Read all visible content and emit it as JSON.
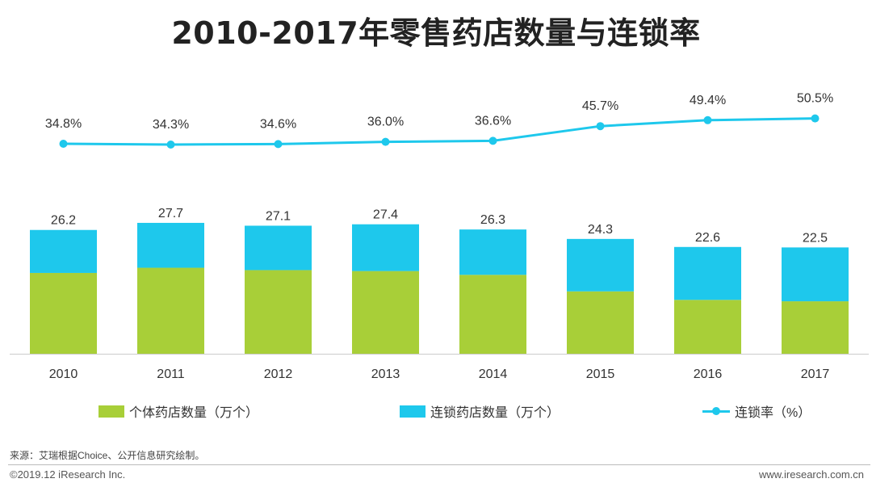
{
  "title": "2010-2017年零售药店数量与连锁率",
  "chart_data": {
    "type": "bar",
    "stacked": true,
    "title": "2010-2017年零售药店数量与连锁率",
    "categories": [
      "2010",
      "2011",
      "2012",
      "2013",
      "2014",
      "2015",
      "2016",
      "2017"
    ],
    "series": [
      {
        "name": "个体药店数量（万个）",
        "type": "bar",
        "color": "#a8cf38",
        "values": [
          17.1,
          18.2,
          17.7,
          17.5,
          16.7,
          13.2,
          11.4,
          11.1
        ]
      },
      {
        "name": "连锁药店数量（万个）",
        "type": "bar",
        "color": "#1ec8ec",
        "values": [
          9.1,
          9.5,
          9.4,
          9.9,
          9.6,
          11.1,
          11.2,
          11.4
        ]
      },
      {
        "name": "连锁率（%）",
        "type": "line",
        "color": "#1ec8ec",
        "values": [
          34.8,
          34.3,
          34.6,
          36.0,
          36.6,
          45.7,
          49.4,
          50.5
        ]
      }
    ],
    "totals": [
      26.2,
      27.7,
      27.1,
      27.4,
      26.3,
      24.3,
      22.6,
      22.5
    ],
    "total_labels": [
      "26.2",
      "27.7",
      "27.1",
      "27.4",
      "26.3",
      "24.3",
      "22.6",
      "22.5"
    ],
    "rate_labels": [
      "34.8%",
      "34.3%",
      "34.6%",
      "36.0%",
      "36.6%",
      "45.7%",
      "49.4%",
      "50.5%"
    ],
    "legend_position": "bottom",
    "grid": false
  },
  "legend": {
    "individual": "个体药店数量（万个）",
    "chain": "连锁药店数量（万个）",
    "rate": "连锁率（%）"
  },
  "colors": {
    "individual": "#a8cf38",
    "chain": "#1ec8ec",
    "rate": "#1ec8ec"
  },
  "footer": {
    "source": "来源：艾瑞根据Choice、公开信息研究绘制。",
    "copyright": "©2019.12 iResearch Inc.",
    "website": "www.iresearch.com.cn"
  }
}
